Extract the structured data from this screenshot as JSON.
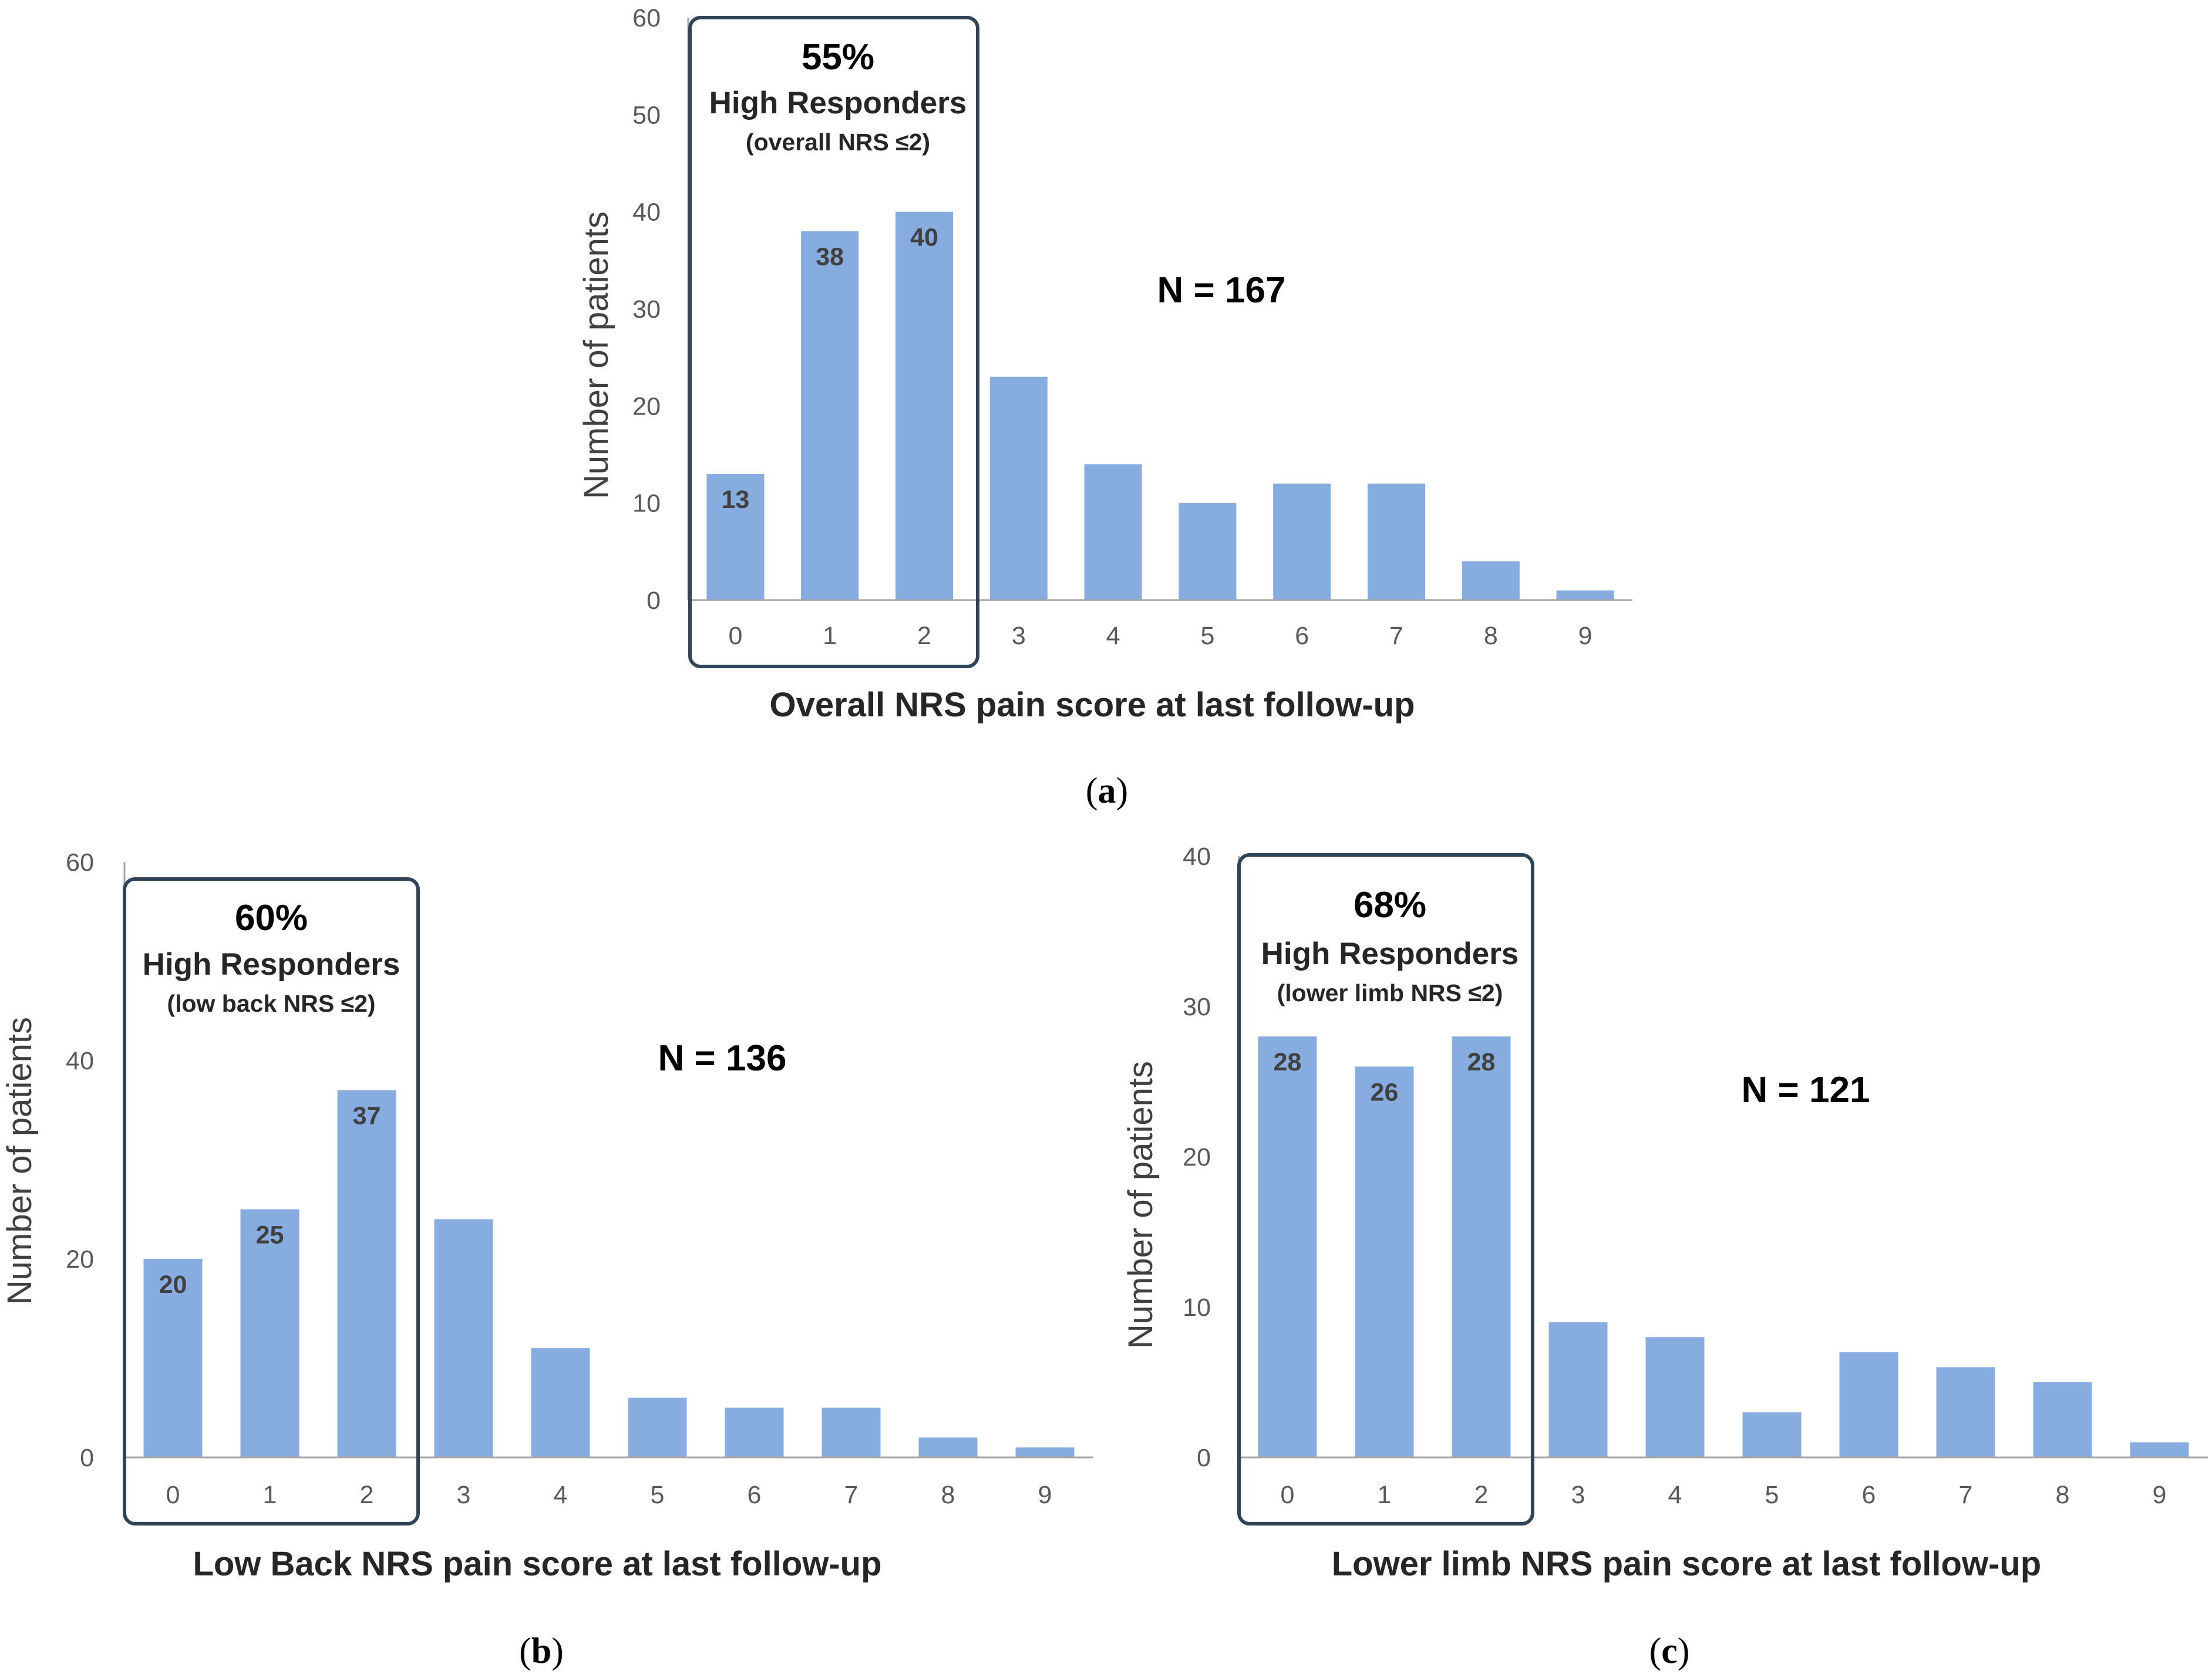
{
  "colors": {
    "bar": "#86ACE0",
    "box": "#2F4557",
    "axis": "#A6A6A6"
  },
  "chart_data": [
    {
      "id": "a",
      "type": "bar",
      "caption_letter": "a",
      "categories": [
        "0",
        "1",
        "2",
        "3",
        "4",
        "5",
        "6",
        "7",
        "8",
        "9"
      ],
      "values": [
        13,
        38,
        40,
        23,
        14,
        10,
        12,
        12,
        4,
        1
      ],
      "labeled_indices": [
        0,
        1,
        2
      ],
      "ylim": [
        0,
        60
      ],
      "yticks": [
        0,
        10,
        20,
        30,
        40,
        50,
        60
      ],
      "ylabel": "Number of patients",
      "xlabel": "Overall NRS pain score at last follow-up",
      "box": {
        "percent": "55%",
        "title": "High Responders",
        "criterion": "(overall NRS ≤2)"
      },
      "n_text": "N = 167"
    },
    {
      "id": "b",
      "type": "bar",
      "caption_letter": "b",
      "categories": [
        "0",
        "1",
        "2",
        "3",
        "4",
        "5",
        "6",
        "7",
        "8",
        "9"
      ],
      "values": [
        20,
        25,
        37,
        24,
        11,
        6,
        5,
        5,
        2,
        1
      ],
      "labeled_indices": [
        0,
        1,
        2
      ],
      "ylim": [
        0,
        60
      ],
      "yticks": [
        0,
        20,
        40,
        60
      ],
      "ylabel": "Number of patients",
      "xlabel": "Low Back NRS pain score at last follow-up",
      "box": {
        "percent": "60%",
        "title": "High Responders",
        "criterion": "(low back NRS ≤2)"
      },
      "n_text": "N = 136"
    },
    {
      "id": "c",
      "type": "bar",
      "caption_letter": "c",
      "categories": [
        "0",
        "1",
        "2",
        "3",
        "4",
        "5",
        "6",
        "7",
        "8",
        "9"
      ],
      "values": [
        28,
        26,
        28,
        9,
        8,
        3,
        7,
        6,
        5,
        1
      ],
      "labeled_indices": [
        0,
        1,
        2
      ],
      "ylim": [
        0,
        40
      ],
      "yticks": [
        0,
        10,
        20,
        30,
        40
      ],
      "ylabel": "Number of patients",
      "xlabel": "Lower limb NRS pain score at last follow-up",
      "box": {
        "percent": "68%",
        "title": "High Responders",
        "criterion": "(lower limb NRS ≤2)"
      },
      "n_text": "N = 121"
    }
  ]
}
